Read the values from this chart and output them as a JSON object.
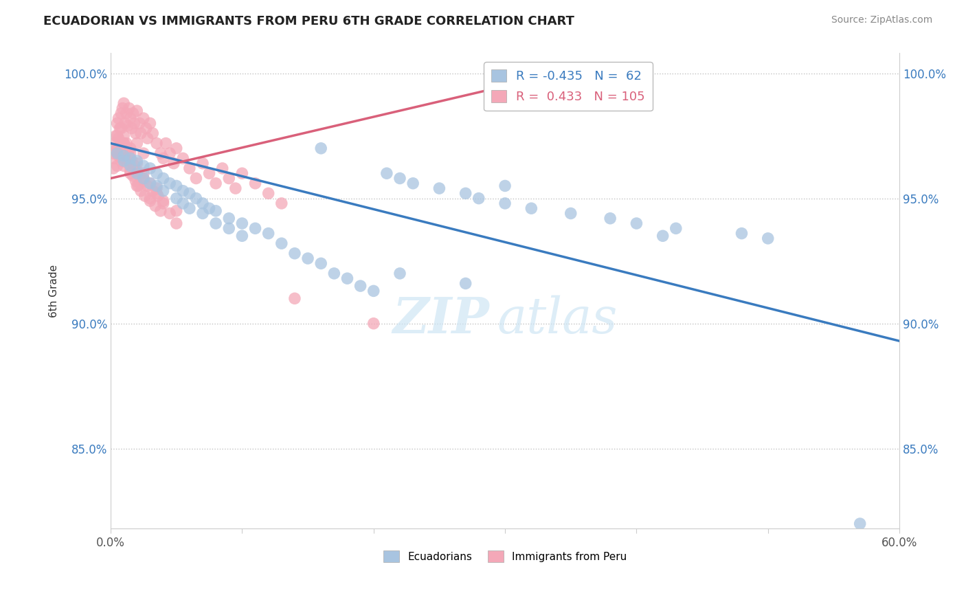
{
  "title": "ECUADORIAN VS IMMIGRANTS FROM PERU 6TH GRADE CORRELATION CHART",
  "source": "Source: ZipAtlas.com",
  "ylabel": "6th Grade",
  "xlim": [
    0.0,
    0.6
  ],
  "ylim": [
    0.818,
    1.008
  ],
  "xticks": [
    0.0,
    0.1,
    0.2,
    0.3,
    0.4,
    0.5,
    0.6
  ],
  "xticklabels": [
    "0.0%",
    "",
    "",
    "",
    "",
    "",
    "60.0%"
  ],
  "yticks": [
    0.85,
    0.9,
    0.95,
    1.0
  ],
  "yticklabels": [
    "85.0%",
    "90.0%",
    "95.0%",
    "100.0%"
  ],
  "legend_blue_r": "R = -0.435",
  "legend_blue_n": "N =  62",
  "legend_pink_r": "R =  0.433",
  "legend_pink_n": "N = 105",
  "blue_color": "#a8c4e0",
  "pink_color": "#f4a8b8",
  "blue_line_color": "#3a7bbf",
  "pink_line_color": "#d9607a",
  "watermark_zip": "ZIP",
  "watermark_atlas": "atlas",
  "blue_line_x0": 0.0,
  "blue_line_x1": 0.6,
  "blue_line_y0": 0.972,
  "blue_line_y1": 0.893,
  "pink_line_x0": 0.0,
  "pink_line_x1": 0.35,
  "pink_line_y0": 0.958,
  "pink_line_y1": 1.001,
  "blue_scatter_x": [
    0.005,
    0.01,
    0.01,
    0.015,
    0.015,
    0.02,
    0.02,
    0.025,
    0.025,
    0.03,
    0.03,
    0.035,
    0.035,
    0.04,
    0.04,
    0.045,
    0.05,
    0.05,
    0.055,
    0.055,
    0.06,
    0.06,
    0.065,
    0.07,
    0.07,
    0.075,
    0.08,
    0.08,
    0.09,
    0.09,
    0.1,
    0.1,
    0.11,
    0.12,
    0.13,
    0.14,
    0.15,
    0.16,
    0.17,
    0.18,
    0.19,
    0.2,
    0.21,
    0.22,
    0.23,
    0.25,
    0.27,
    0.28,
    0.3,
    0.32,
    0.35,
    0.38,
    0.4,
    0.43,
    0.48,
    0.5,
    0.3,
    0.42,
    0.22,
    0.27,
    0.57,
    0.16
  ],
  "blue_scatter_y": [
    0.968,
    0.967,
    0.965,
    0.966,
    0.963,
    0.965,
    0.96,
    0.963,
    0.958,
    0.962,
    0.956,
    0.96,
    0.955,
    0.958,
    0.953,
    0.956,
    0.955,
    0.95,
    0.953,
    0.948,
    0.952,
    0.946,
    0.95,
    0.948,
    0.944,
    0.946,
    0.945,
    0.94,
    0.942,
    0.938,
    0.94,
    0.935,
    0.938,
    0.936,
    0.932,
    0.928,
    0.926,
    0.924,
    0.92,
    0.918,
    0.915,
    0.913,
    0.96,
    0.958,
    0.956,
    0.954,
    0.952,
    0.95,
    0.948,
    0.946,
    0.944,
    0.942,
    0.94,
    0.938,
    0.936,
    0.934,
    0.955,
    0.935,
    0.92,
    0.916,
    0.82,
    0.97
  ],
  "pink_scatter_x": [
    0.002,
    0.003,
    0.004,
    0.005,
    0.005,
    0.006,
    0.006,
    0.007,
    0.008,
    0.008,
    0.009,
    0.01,
    0.01,
    0.011,
    0.012,
    0.012,
    0.013,
    0.014,
    0.015,
    0.015,
    0.016,
    0.017,
    0.018,
    0.019,
    0.02,
    0.02,
    0.022,
    0.023,
    0.025,
    0.025,
    0.027,
    0.028,
    0.03,
    0.032,
    0.035,
    0.038,
    0.04,
    0.042,
    0.045,
    0.048,
    0.05,
    0.055,
    0.06,
    0.065,
    0.07,
    0.075,
    0.08,
    0.085,
    0.09,
    0.095,
    0.1,
    0.11,
    0.12,
    0.13,
    0.002,
    0.003,
    0.004,
    0.005,
    0.006,
    0.007,
    0.008,
    0.009,
    0.01,
    0.01,
    0.011,
    0.012,
    0.013,
    0.014,
    0.015,
    0.016,
    0.017,
    0.018,
    0.019,
    0.02,
    0.021,
    0.022,
    0.023,
    0.025,
    0.026,
    0.028,
    0.03,
    0.032,
    0.034,
    0.036,
    0.038,
    0.04,
    0.005,
    0.008,
    0.01,
    0.015,
    0.02,
    0.025,
    0.03,
    0.035,
    0.04,
    0.045,
    0.05,
    0.02,
    0.03,
    0.05,
    0.015,
    0.025,
    0.035,
    0.14,
    0.2
  ],
  "pink_scatter_y": [
    0.968,
    0.972,
    0.975,
    0.97,
    0.98,
    0.974,
    0.982,
    0.978,
    0.984,
    0.971,
    0.986,
    0.975,
    0.988,
    0.98,
    0.984,
    0.972,
    0.979,
    0.986,
    0.982,
    0.97,
    0.978,
    0.984,
    0.98,
    0.976,
    0.985,
    0.972,
    0.98,
    0.976,
    0.982,
    0.968,
    0.978,
    0.974,
    0.98,
    0.976,
    0.972,
    0.968,
    0.966,
    0.972,
    0.968,
    0.964,
    0.97,
    0.966,
    0.962,
    0.958,
    0.964,
    0.96,
    0.956,
    0.962,
    0.958,
    0.954,
    0.96,
    0.956,
    0.952,
    0.948,
    0.962,
    0.966,
    0.969,
    0.963,
    0.967,
    0.971,
    0.965,
    0.968,
    0.963,
    0.972,
    0.966,
    0.97,
    0.964,
    0.967,
    0.961,
    0.965,
    0.959,
    0.963,
    0.957,
    0.961,
    0.955,
    0.959,
    0.953,
    0.957,
    0.951,
    0.955,
    0.949,
    0.953,
    0.947,
    0.951,
    0.945,
    0.949,
    0.975,
    0.978,
    0.972,
    0.968,
    0.964,
    0.96,
    0.956,
    0.952,
    0.948,
    0.944,
    0.94,
    0.955,
    0.95,
    0.945,
    0.96,
    0.958,
    0.954,
    0.91,
    0.9
  ]
}
